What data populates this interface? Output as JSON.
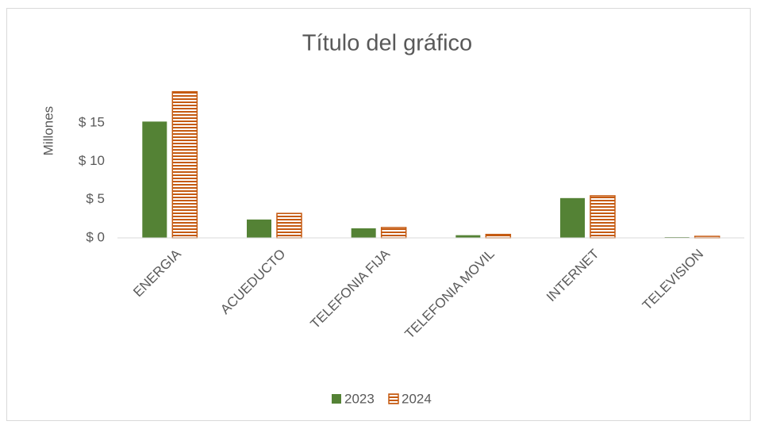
{
  "chart_data": {
    "type": "bar",
    "title": "Título del gráfico",
    "y_label": "Millones",
    "categories": [
      "ENERGIA",
      "ACUEDUCTO",
      "TELEFONIA FIJA",
      "TELEFONIA MOVIL",
      "INTERNET",
      "TELEVISION"
    ],
    "series": [
      {
        "name": "2023",
        "color": "#548235",
        "values": [
          15.2,
          2.4,
          1.25,
          0.35,
          5.2,
          0.1
        ]
      },
      {
        "name": "2024",
        "color": "#c55a11",
        "values": [
          19.1,
          3.2,
          1.35,
          0.45,
          5.5,
          0.2
        ]
      }
    ],
    "ylim": [
      0,
      20
    ],
    "yticks": [
      {
        "value": 0,
        "label": "$ 0"
      },
      {
        "value": 5,
        "label": "$ 5"
      },
      {
        "value": 10,
        "label": "$ 10"
      },
      {
        "value": 15,
        "label": "$ 15"
      }
    ],
    "legend": "bottom",
    "grid": false
  }
}
